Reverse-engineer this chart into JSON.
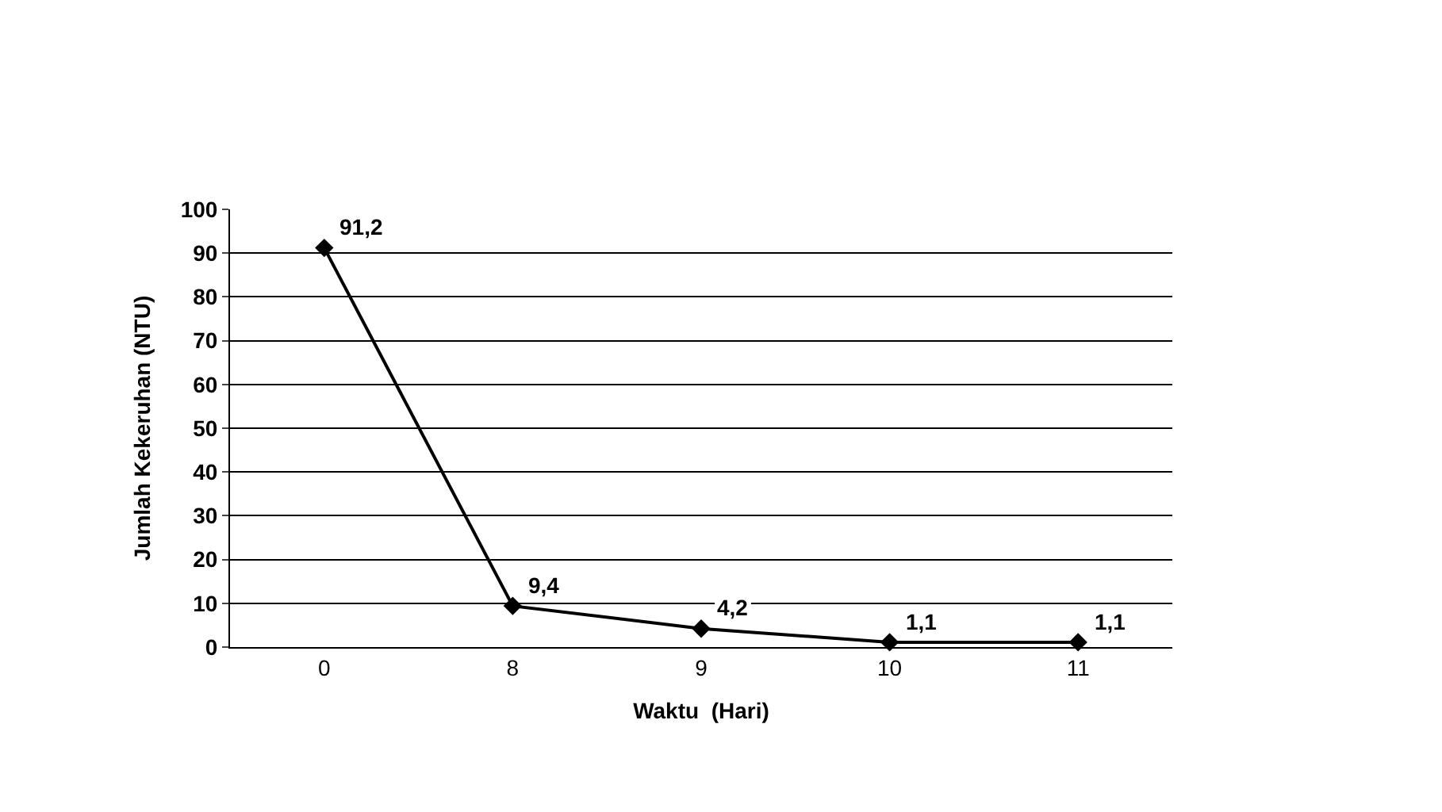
{
  "chart_data": {
    "type": "line",
    "xlabel": "Waktu  (Hari)",
    "ylabel": "Jumlah Kekeruhan (NTU)",
    "categories": [
      "0",
      "8",
      "9",
      "10",
      "11"
    ],
    "series": [
      {
        "color": "#000000",
        "values": [
          91.2,
          9.4,
          4.2,
          1.1,
          1.1
        ],
        "value_labels": [
          "91,2",
          "9,4",
          "4,2",
          "1,1",
          "1,1"
        ]
      }
    ],
    "ylim": [
      0,
      100
    ],
    "yticks": [
      0,
      10,
      20,
      30,
      40,
      50,
      60,
      70,
      80,
      90,
      100
    ],
    "grid": "y",
    "legend": false,
    "marker": "diamond",
    "line_style": "solid"
  }
}
